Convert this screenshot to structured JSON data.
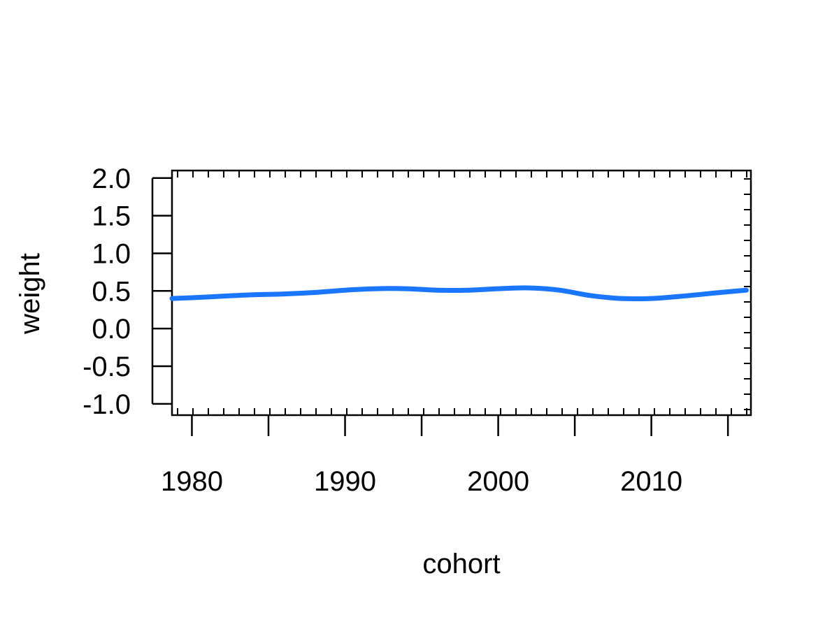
{
  "chart_data": {
    "type": "line",
    "title": "",
    "xlabel": "cohort",
    "ylabel": "weight",
    "xlim": [
      1978.7,
      2016.5
    ],
    "ylim": [
      -1.15,
      2.1
    ],
    "x_ticks": [
      1980,
      1985,
      1990,
      1995,
      2000,
      2005,
      2010,
      2015
    ],
    "x_tick_labels": [
      "1980",
      "1990",
      "2000",
      "2010"
    ],
    "x_tick_label_values": [
      1980,
      1990,
      2000,
      2010
    ],
    "y_ticks": [
      -1.0,
      -0.5,
      0.0,
      0.5,
      1.0,
      1.5,
      2.0
    ],
    "y_tick_labels": [
      "-1.0",
      "-0.5",
      "0.0",
      "0.5",
      "1.0",
      "1.5",
      "2.0"
    ],
    "grid": false,
    "series": [
      {
        "color": "#1a75ff",
        "x": [
          1978.7,
          1980,
          1982,
          1984,
          1986,
          1988,
          1990,
          1992,
          1994,
          1996,
          1998,
          2000,
          2002,
          2004,
          2006,
          2008,
          2010,
          2012,
          2014,
          2016.2
        ],
        "y": [
          0.4,
          0.41,
          0.43,
          0.45,
          0.46,
          0.48,
          0.51,
          0.53,
          0.53,
          0.51,
          0.51,
          0.53,
          0.54,
          0.51,
          0.44,
          0.4,
          0.4,
          0.43,
          0.47,
          0.51
        ]
      }
    ]
  }
}
